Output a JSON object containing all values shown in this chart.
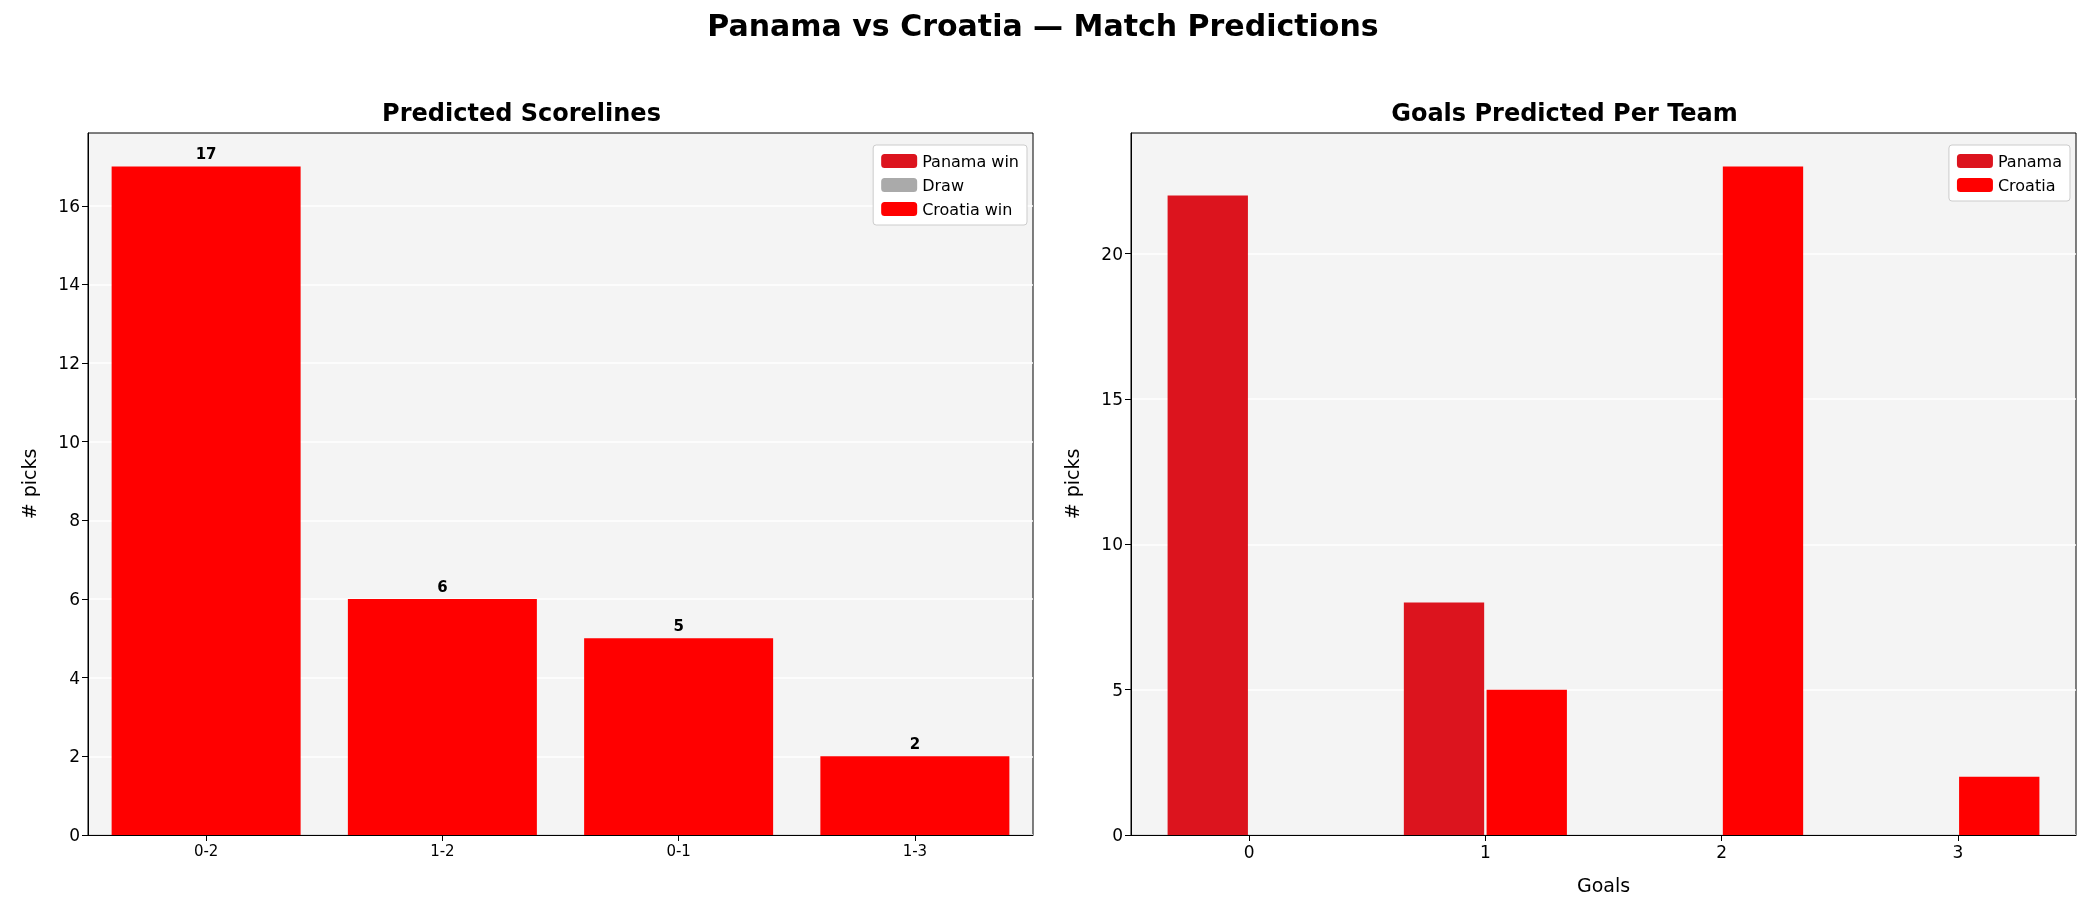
{
  "chart_data": [
    {
      "type": "bar",
      "title": "Predicted Scorelines",
      "ylabel": "# picks",
      "annotations": [
        "Panama vs Croatia  —  Match Predictions"
      ],
      "categories": [
        "0-2",
        "1-2",
        "0-1",
        "1-3"
      ],
      "stacked": true,
      "data_labels": true,
      "ylim": [
        0,
        17.85
      ],
      "yticks": [
        0,
        2,
        4,
        6,
        8,
        10,
        12,
        14,
        16
      ],
      "grid": "y",
      "legend": "top right",
      "series": [
        {
          "name": "Panama win",
          "color": "#dc141e",
          "values": [
            null,
            null,
            null,
            null
          ]
        },
        {
          "name": "Draw",
          "color": "#aaaaaa",
          "values": [
            null,
            null,
            null,
            null
          ]
        },
        {
          "name": "Croatia win",
          "color": "#ff0000",
          "values": [
            17,
            6,
            5,
            2
          ]
        }
      ]
    },
    {
      "type": "bar",
      "title": "Goals Predicted Per Team",
      "xlabel": "Goals",
      "ylabel": "# picks",
      "categories": [
        "0",
        "1",
        "2",
        "3"
      ],
      "ylim": [
        0,
        24.15
      ],
      "yticks": [
        0,
        5,
        10,
        15,
        20
      ],
      "grid": "y",
      "legend": "top right",
      "series": [
        {
          "name": "Panama",
          "color": "#dc141e",
          "values": [
            22,
            8,
            0,
            0
          ]
        },
        {
          "name": "Croatia",
          "color": "#ff0000",
          "values": [
            0,
            5,
            23,
            2
          ]
        }
      ]
    }
  ]
}
